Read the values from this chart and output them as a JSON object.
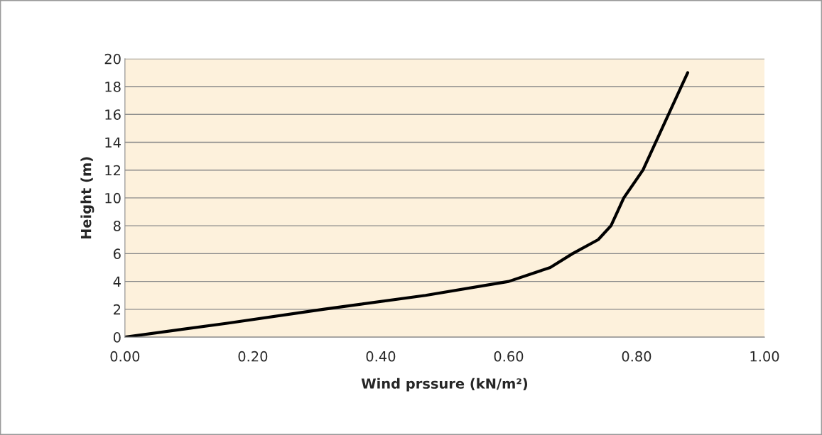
{
  "chart_data": {
    "type": "line",
    "xlabel": "Wind prssure (kN/m²)",
    "ylabel": "Height (m)",
    "xlim": [
      0,
      1
    ],
    "xticks": [
      {
        "value": 0,
        "label": "0.00"
      },
      {
        "value": 0.2,
        "label": "0.20"
      },
      {
        "value": 0.4,
        "label": "0.40"
      },
      {
        "value": 0.6,
        "label": "0.60"
      },
      {
        "value": 0.8,
        "label": "0.80"
      },
      {
        "value": 1,
        "label": "1.00"
      }
    ],
    "ylim": [
      0,
      20
    ],
    "yticks": [
      0,
      2,
      4,
      6,
      8,
      10,
      12,
      14,
      16,
      18,
      20
    ],
    "grid": "y",
    "marker": "none",
    "line_style": "solid",
    "series": [
      {
        "color": "#000000",
        "x": [
          0,
          0.16,
          0.31,
          0.47,
          0.6,
          0.665,
          0.7,
          0.74,
          0.76,
          0.77,
          0.78,
          0.81,
          0.83,
          0.85,
          0.87,
          0.88
        ],
        "values": [
          0,
          1,
          2,
          3,
          4,
          5,
          6,
          7,
          8,
          9,
          10,
          12,
          14,
          16,
          18,
          19
        ]
      }
    ]
  }
}
